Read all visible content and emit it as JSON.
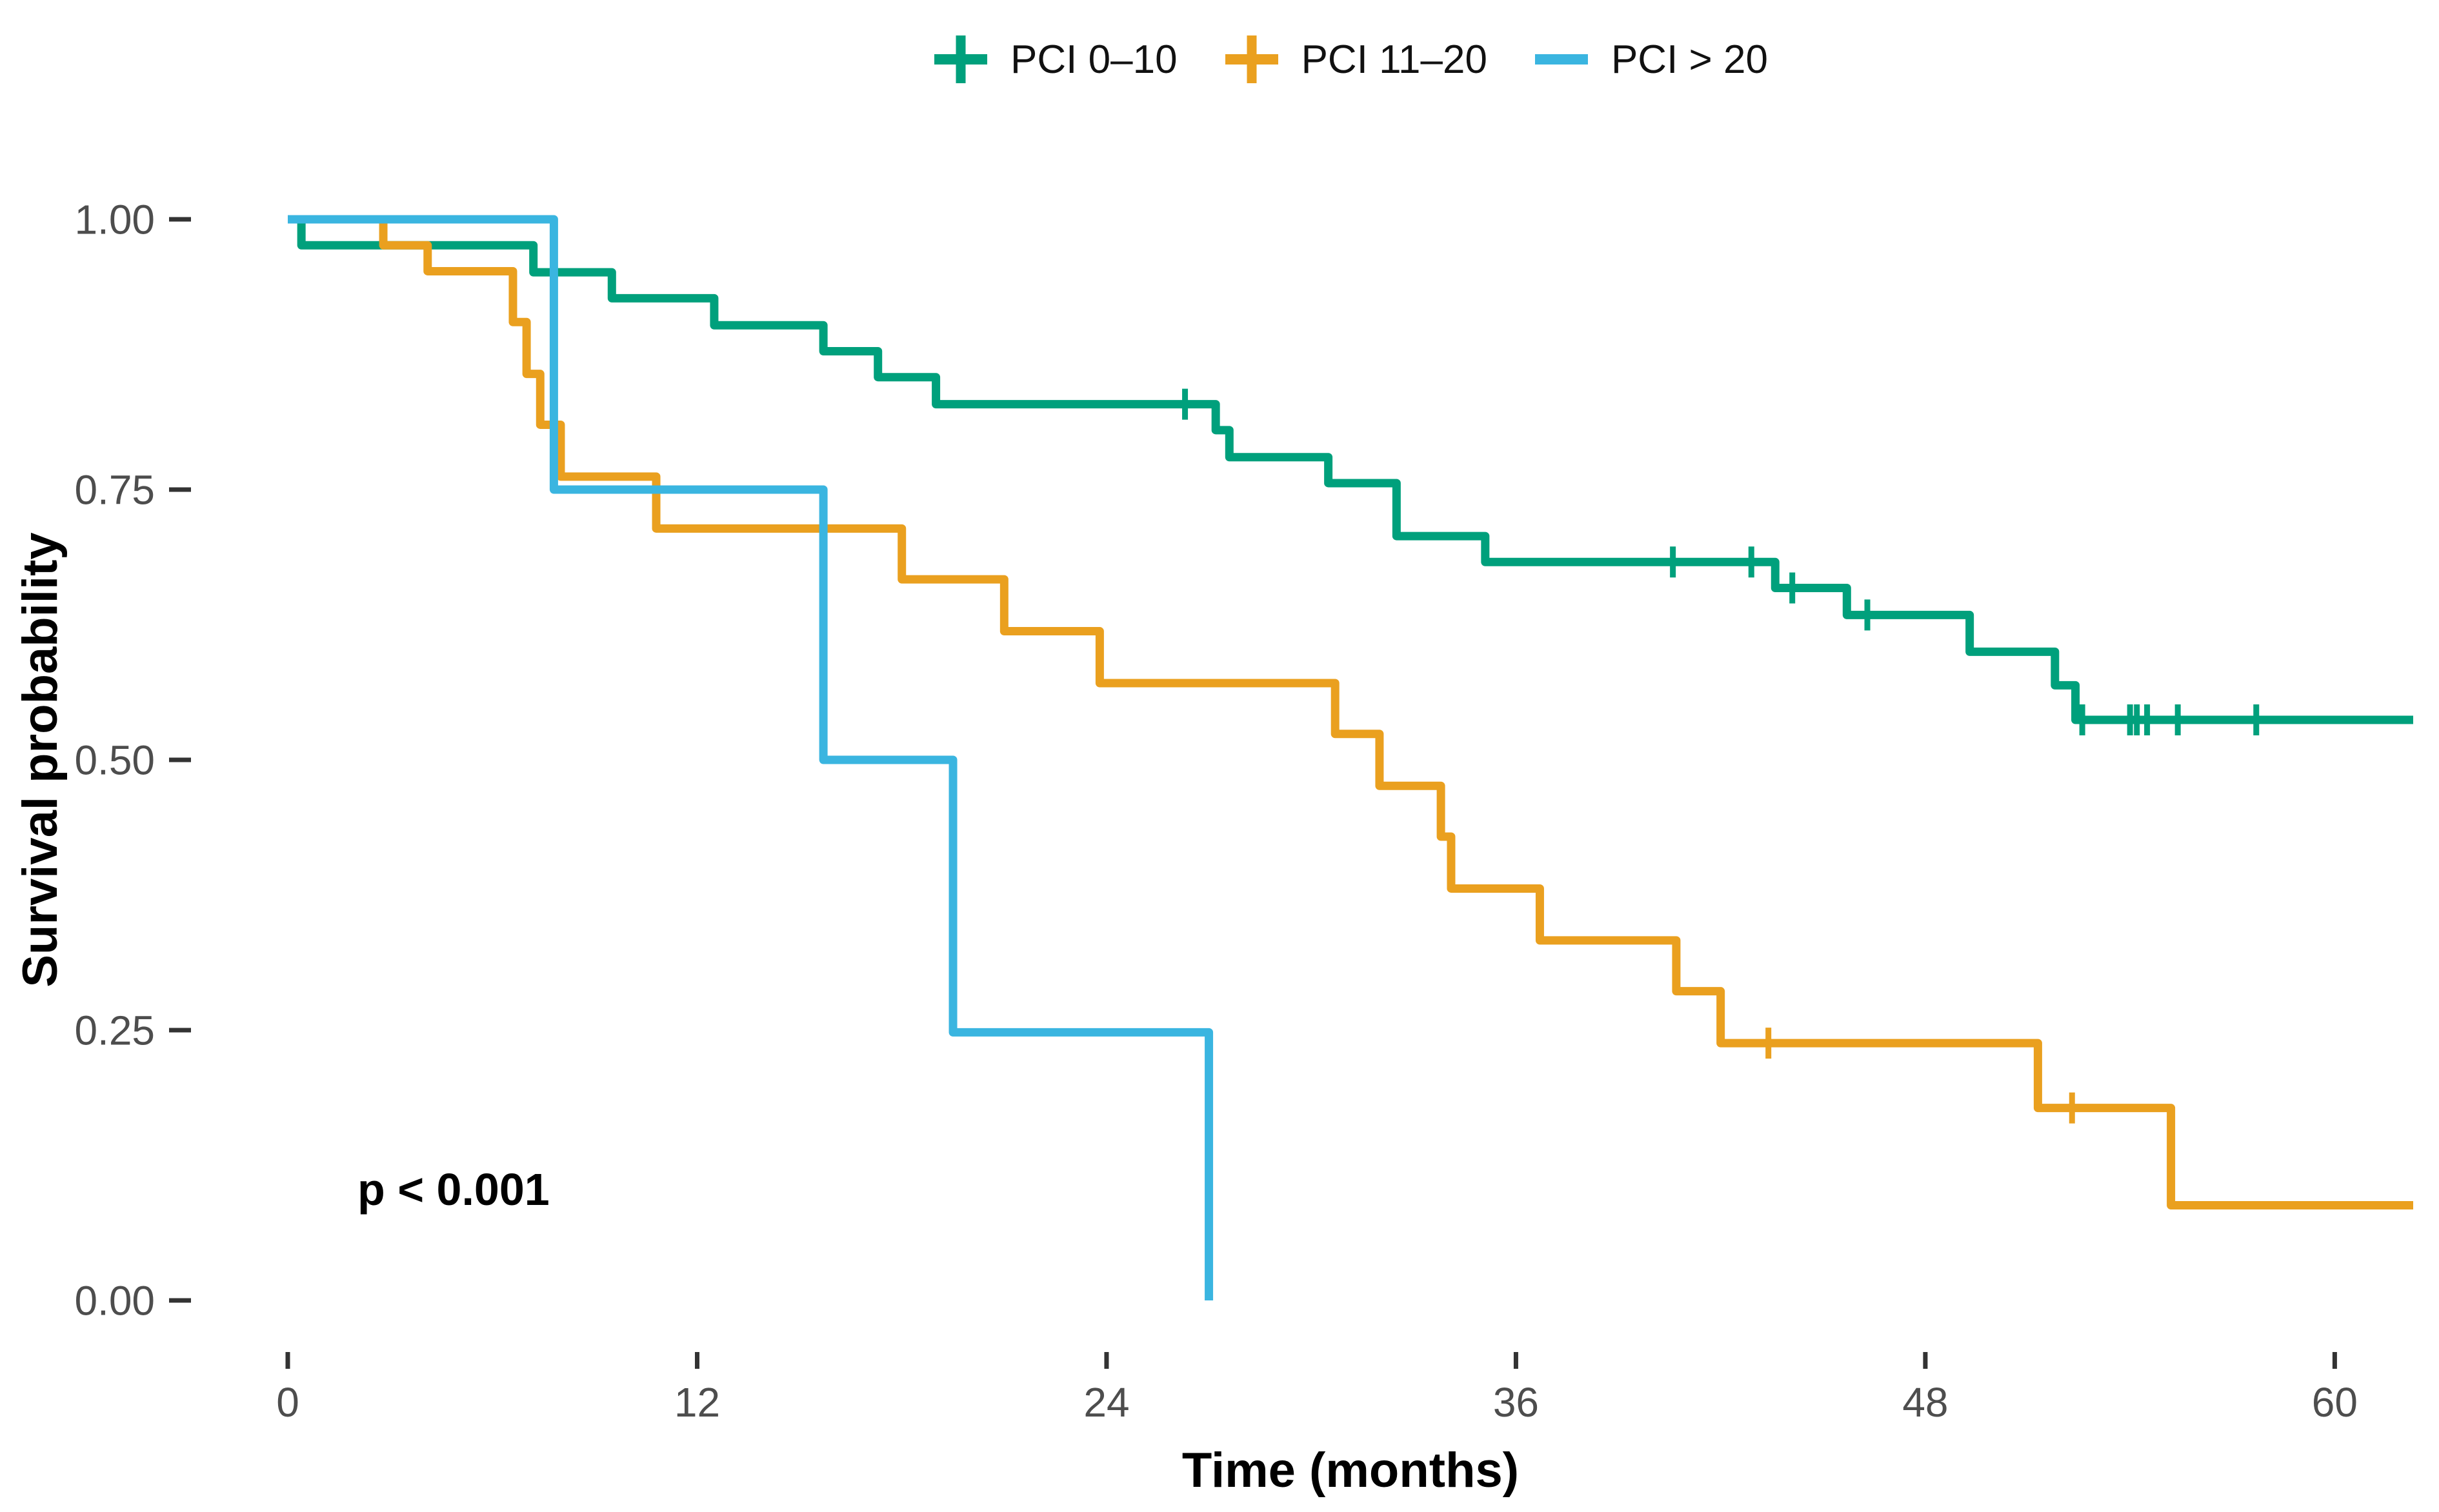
{
  "figure": {
    "p_value": "p < 0.001",
    "background": "#ffffff",
    "tick_color": "#333333",
    "tick_label_color": "#4d4d4d"
  },
  "legend": {
    "position": "top",
    "items": [
      {
        "label": "PCI 0–10",
        "color": "#00a07c",
        "key_shape": "plus-line"
      },
      {
        "label": "PCI 11–20",
        "color": "#eaa01f",
        "key_shape": "plus-line"
      },
      {
        "label": "PCI > 20",
        "color": "#3ab5e0",
        "key_shape": "line"
      }
    ]
  },
  "chart_data": {
    "type": "line",
    "subtype": "kaplan-meier-step",
    "title": "",
    "xlabel": "Time (months)",
    "ylabel": "Survival probability",
    "annotation": "p < 0.001",
    "grid": false,
    "legend_position": "top",
    "xlim": [
      0,
      62.3
    ],
    "ylim": [
      0,
      1
    ],
    "x_ticks": [
      0,
      12,
      24,
      36,
      48,
      60
    ],
    "x_tick_labels": [
      "0",
      "12",
      "24",
      "36",
      "48",
      "60"
    ],
    "y_ticks": [
      0,
      0.25,
      0.5,
      0.75,
      1
    ],
    "y_tick_labels": [
      "0.00",
      "0.25",
      "0.50",
      "0.75",
      "1.00"
    ],
    "series": [
      {
        "name": "PCI 0–10",
        "color": "#00a07c",
        "end_time": 62.3,
        "points": [
          [
            0,
            1.0
          ],
          [
            0.4,
            0.976
          ],
          [
            7.2,
            0.951
          ],
          [
            9.5,
            0.927
          ],
          [
            12.5,
            0.902
          ],
          [
            15.7,
            0.878
          ],
          [
            17.3,
            0.854
          ],
          [
            19.0,
            0.829
          ],
          [
            27.2,
            0.805
          ],
          [
            27.6,
            0.78
          ],
          [
            30.5,
            0.756
          ],
          [
            32.5,
            0.707
          ],
          [
            35.1,
            0.683
          ],
          [
            43.6,
            0.659
          ],
          [
            45.7,
            0.634
          ],
          [
            49.3,
            0.6
          ],
          [
            51.8,
            0.569
          ],
          [
            52.4,
            0.537
          ]
        ],
        "censors": [
          [
            26.3,
            0.829
          ],
          [
            40.6,
            0.683
          ],
          [
            42.9,
            0.683
          ],
          [
            44.1,
            0.659
          ],
          [
            46.3,
            0.634
          ],
          [
            52.6,
            0.537
          ],
          [
            54.0,
            0.537
          ],
          [
            54.2,
            0.537
          ],
          [
            54.5,
            0.537
          ],
          [
            55.4,
            0.537
          ],
          [
            57.7,
            0.537
          ]
        ]
      },
      {
        "name": "PCI 11–20",
        "color": "#eaa01f",
        "end_time": 62.3,
        "points": [
          [
            0,
            1.0
          ],
          [
            2.8,
            0.976
          ],
          [
            4.1,
            0.952
          ],
          [
            6.6,
            0.905
          ],
          [
            7.0,
            0.857
          ],
          [
            7.4,
            0.81
          ],
          [
            8.0,
            0.762
          ],
          [
            10.8,
            0.714
          ],
          [
            18.0,
            0.667
          ],
          [
            21.0,
            0.619
          ],
          [
            23.8,
            0.571
          ],
          [
            30.7,
            0.524
          ],
          [
            32.0,
            0.476
          ],
          [
            33.8,
            0.429
          ],
          [
            34.1,
            0.381
          ],
          [
            36.7,
            0.333
          ],
          [
            40.7,
            0.286
          ],
          [
            42.0,
            0.238
          ],
          [
            51.3,
            0.178
          ],
          [
            55.2,
            0.088
          ]
        ],
        "censors": [
          [
            43.4,
            0.238
          ],
          [
            52.3,
            0.178
          ]
        ]
      },
      {
        "name": "PCI > 20",
        "color": "#3ab5e0",
        "end_time": 27.0,
        "points": [
          [
            0,
            1.0
          ],
          [
            7.8,
            0.75
          ],
          [
            15.7,
            0.5
          ],
          [
            19.5,
            0.248
          ],
          [
            27.0,
            0.0
          ]
        ],
        "censors": []
      }
    ]
  }
}
